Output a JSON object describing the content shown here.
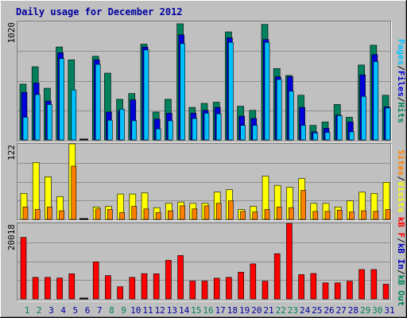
{
  "title": "Daily usage for December 2012",
  "colors": {
    "background": "#c0c0c0",
    "title": "#0000a0",
    "hits": "#00805c",
    "files": "#0000d8",
    "pages": "#00c0ff",
    "visits": "#ffff00",
    "sites": "#ff8000",
    "kb_in": "#0000c0",
    "kb_out": "#00805c",
    "kb_f": "#ff0000",
    "weekend_label": "#00805c",
    "weekday_label": "#0000a0"
  },
  "legend": {
    "top": [
      "Pages",
      "/",
      "Files",
      "/",
      "Hits"
    ],
    "middle": [
      "Sites",
      "/",
      "Visits"
    ],
    "bottom": [
      "kB F",
      "/",
      "kB In",
      "/",
      "kB Out"
    ]
  },
  "chart_data": [
    {
      "type": "bar",
      "title": "Pages / Files / Hits",
      "ymax_label": "1020",
      "ylim": [
        0,
        1020
      ],
      "categories": [
        "1",
        "2",
        "3",
        "4",
        "5",
        "6",
        "7",
        "8",
        "9",
        "10",
        "11",
        "12",
        "13",
        "14",
        "15",
        "16",
        "17",
        "18",
        "19",
        "20",
        "21",
        "22",
        "23",
        "24",
        "25",
        "26",
        "27",
        "28",
        "29",
        "30",
        "31"
      ],
      "weekend_days": [
        "1",
        "2",
        "8",
        "9",
        "15",
        "16",
        "22",
        "23",
        "29",
        "30"
      ],
      "series": [
        {
          "name": "Hits",
          "values": [
            480,
            630,
            445,
            800,
            690,
            0,
            720,
            575,
            350,
            400,
            825,
            240,
            350,
            1000,
            280,
            315,
            325,
            930,
            290,
            255,
            995,
            615,
            555,
            385,
            125,
            155,
            305,
            195,
            645,
            815,
            385
          ]
        },
        {
          "name": "Files",
          "values": [
            410,
            490,
            335,
            750,
            0,
            0,
            690,
            240,
            250,
            345,
            800,
            180,
            230,
            905,
            230,
            255,
            280,
            880,
            205,
            185,
            865,
            545,
            545,
            280,
            70,
            100,
            215,
            155,
            560,
            735,
            285
          ]
        },
        {
          "name": "Pages",
          "values": [
            195,
            390,
            305,
            700,
            430,
            0,
            650,
            170,
            265,
            165,
            775,
            95,
            165,
            830,
            185,
            230,
            225,
            840,
            125,
            125,
            840,
            520,
            420,
            125,
            60,
            65,
            210,
            70,
            375,
            675,
            275
          ]
        }
      ]
    },
    {
      "type": "bar",
      "title": "Sites / Visits",
      "ymax_label": "122",
      "ylim": [
        0,
        122
      ],
      "categories": [
        "1",
        "2",
        "3",
        "4",
        "5",
        "6",
        "7",
        "8",
        "9",
        "10",
        "11",
        "12",
        "13",
        "14",
        "15",
        "16",
        "17",
        "18",
        "19",
        "20",
        "21",
        "22",
        "23",
        "24",
        "25",
        "26",
        "27",
        "28",
        "29",
        "30",
        "31"
      ],
      "series": [
        {
          "name": "Visits",
          "values": [
            42,
            92,
            69,
            37,
            122,
            0,
            20,
            21,
            41,
            41,
            43,
            19,
            26,
            28,
            26,
            26,
            44,
            48,
            16,
            21,
            70,
            55,
            52,
            66,
            26,
            26,
            20,
            30,
            44,
            42,
            60
          ]
        },
        {
          "name": "Sites",
          "values": [
            20,
            16,
            20,
            14,
            86,
            0,
            17,
            16,
            11,
            21,
            17,
            11,
            14,
            22,
            17,
            22,
            26,
            30,
            13,
            12,
            16,
            20,
            19,
            47,
            13,
            13,
            15,
            12,
            14,
            13,
            16
          ]
        }
      ]
    },
    {
      "type": "bar",
      "title": "kB F / kB In / kB Out",
      "ymax_label": "20018",
      "ylim": [
        0,
        20018
      ],
      "categories": [
        "1",
        "2",
        "3",
        "4",
        "5",
        "6",
        "7",
        "8",
        "9",
        "10",
        "11",
        "12",
        "13",
        "14",
        "15",
        "16",
        "17",
        "18",
        "19",
        "20",
        "21",
        "22",
        "23",
        "24",
        "25",
        "26",
        "27",
        "28",
        "29",
        "30",
        "31"
      ],
      "series": [
        {
          "name": "kB In",
          "values": [
            0,
            0,
            0,
            0,
            0,
            0,
            0,
            0,
            0,
            0,
            0,
            0,
            0,
            0,
            0,
            0,
            0,
            0,
            0,
            0,
            0,
            0,
            0,
            0,
            0,
            0,
            0,
            0,
            0,
            0,
            0
          ]
        },
        {
          "name": "kB Out",
          "values": [
            0,
            0,
            0,
            0,
            0,
            0,
            0,
            0,
            0,
            0,
            0,
            0,
            0,
            0,
            0,
            0,
            0,
            0,
            0,
            0,
            0,
            0,
            0,
            0,
            0,
            0,
            0,
            0,
            0,
            0,
            0
          ]
        },
        {
          "name": "kB F",
          "values": [
            16300,
            5700,
            5700,
            5550,
            6650,
            0,
            9850,
            6200,
            3250,
            5700,
            6700,
            6650,
            10250,
            11500,
            4750,
            4750,
            5500,
            5700,
            7100,
            9300,
            4700,
            12000,
            20018,
            6450,
            6750,
            4250,
            4250,
            4700,
            7800,
            7800,
            3900
          ]
        }
      ]
    }
  ]
}
